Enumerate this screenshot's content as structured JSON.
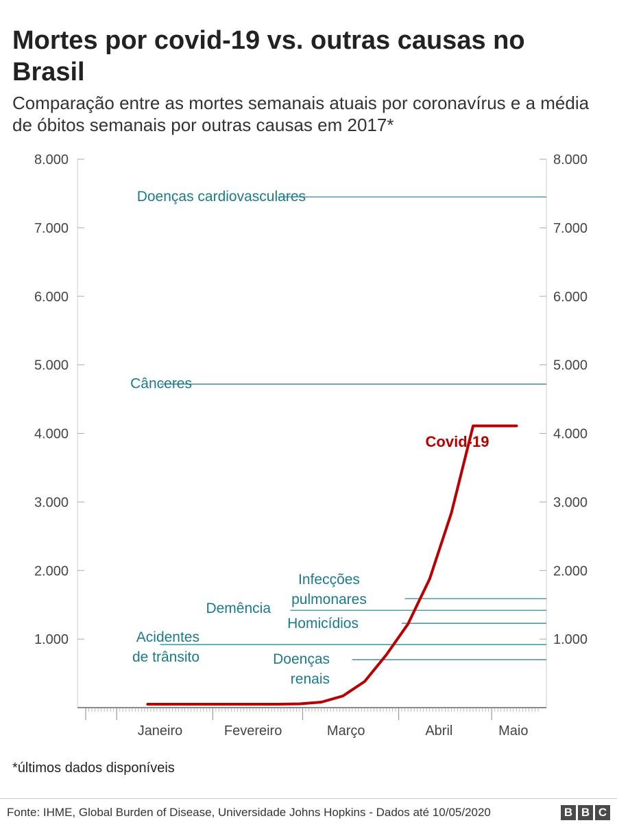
{
  "chart_data": {
    "type": "line",
    "title": "Mortes por covid-19 vs. outras causas no Brasil",
    "subtitle": "Comparação entre as mortes semanais atuais por coronavírus e a média de óbitos semanais por outras causas em 2017*",
    "ylim": [
      0,
      8000
    ],
    "yticks": [
      1000,
      2000,
      3000,
      4000,
      5000,
      6000,
      7000,
      8000
    ],
    "ytick_labels": [
      "1.000",
      "2.000",
      "3.000",
      "4.000",
      "5.000",
      "6.000",
      "7.000",
      "8.000"
    ],
    "x_months": [
      "Janeiro",
      "Fevereiro",
      "Março",
      "Abril",
      "Maio"
    ],
    "x_dates": [
      "2020-01-01",
      "2020-02-01",
      "2020-03-01",
      "2020-04-01",
      "2020-05-01"
    ],
    "x_range": [
      "2019-12-22",
      "2020-05-16"
    ],
    "series": [
      {
        "name": "Covid-19",
        "color": "#b80000",
        "x": [
          "2020-01-11",
          "2020-01-18",
          "2020-01-25",
          "2020-02-01",
          "2020-02-08",
          "2020-02-15",
          "2020-02-22",
          "2020-02-29",
          "2020-03-07",
          "2020-03-14",
          "2020-03-21",
          "2020-03-28",
          "2020-04-04",
          "2020-04-11",
          "2020-04-18",
          "2020-04-25",
          "2020-05-02",
          "2020-05-09"
        ],
        "values": [
          50,
          50,
          50,
          50,
          50,
          50,
          50,
          55,
          80,
          170,
          380,
          770,
          1220,
          1880,
          2840,
          4110,
          4110,
          4110
        ]
      }
    ],
    "reference_lines": [
      {
        "name": "Doenças cardiovasculares",
        "value": 7450,
        "start": "2020-02-22"
      },
      {
        "name": "Cânceres",
        "value": 4720,
        "start": "2020-01-15"
      },
      {
        "name": "Infecções pulmonares",
        "value": 1590,
        "start": "2020-04-03"
      },
      {
        "name": "Demência",
        "value": 1420,
        "start": "2020-02-26"
      },
      {
        "name": "Homicídios",
        "value": 1230,
        "start": "2020-04-02"
      },
      {
        "name": "Acidentes de trânsito",
        "value": 920,
        "start": "2020-01-15"
      },
      {
        "name": "Doenças renais",
        "value": 700,
        "start": "2020-03-17"
      }
    ],
    "colors": {
      "covid": "#b80000",
      "reference": "#1a7a8c",
      "axis": "#999999"
    }
  },
  "note": "*últimos dados disponíveis",
  "source": "Fonte: IHME, Global Burden of Disease, Universidade Johns Hopkins - Dados até 10/05/2020",
  "logo": "BBC"
}
